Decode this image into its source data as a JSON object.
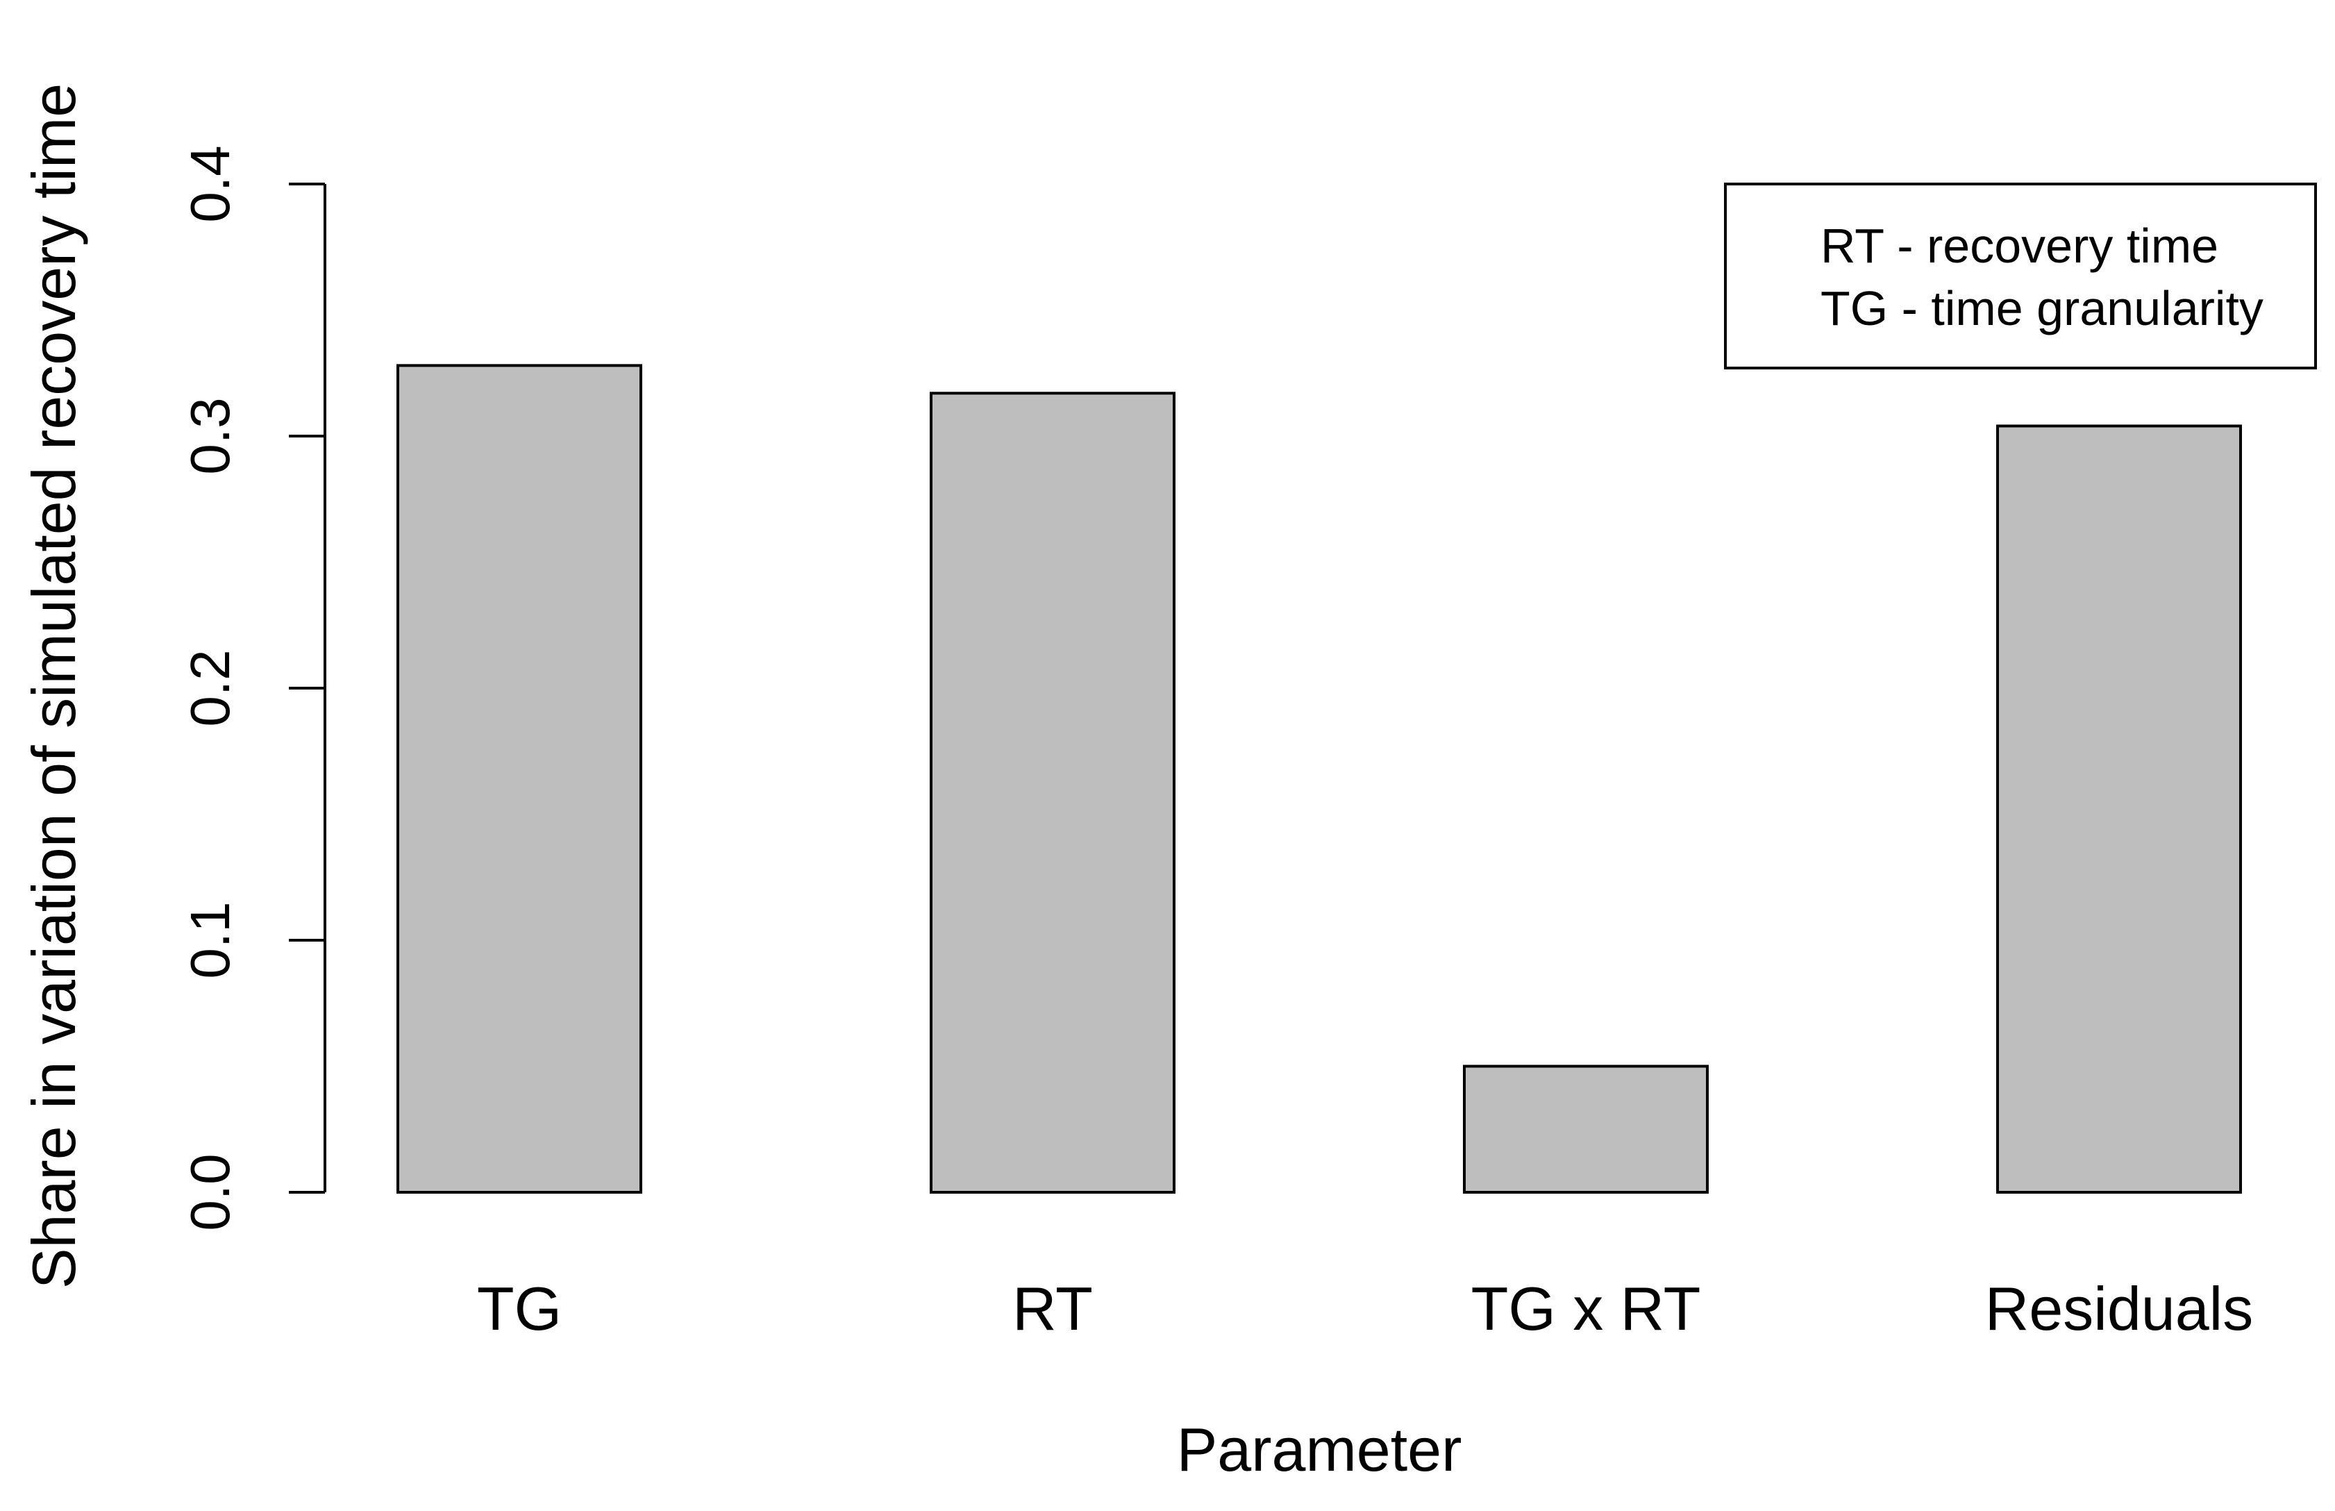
{
  "chart_data": {
    "type": "bar",
    "categories": [
      "TG",
      "RT",
      "TG x RT",
      "Residuals"
    ],
    "values": [
      0.328,
      0.317,
      0.05,
      0.304
    ],
    "xlabel": "Parameter",
    "ylabel": "Share in variation of simulated recovery time",
    "ylim": [
      0,
      0.4
    ],
    "yticks": [
      "0.0",
      "0.1",
      "0.2",
      "0.3",
      "0.4"
    ],
    "grid": false,
    "bar_color": "#bebebe",
    "legend": {
      "placement": "top-right",
      "entries": [
        "RT - recovery time",
        "TG - time granularity"
      ]
    }
  }
}
